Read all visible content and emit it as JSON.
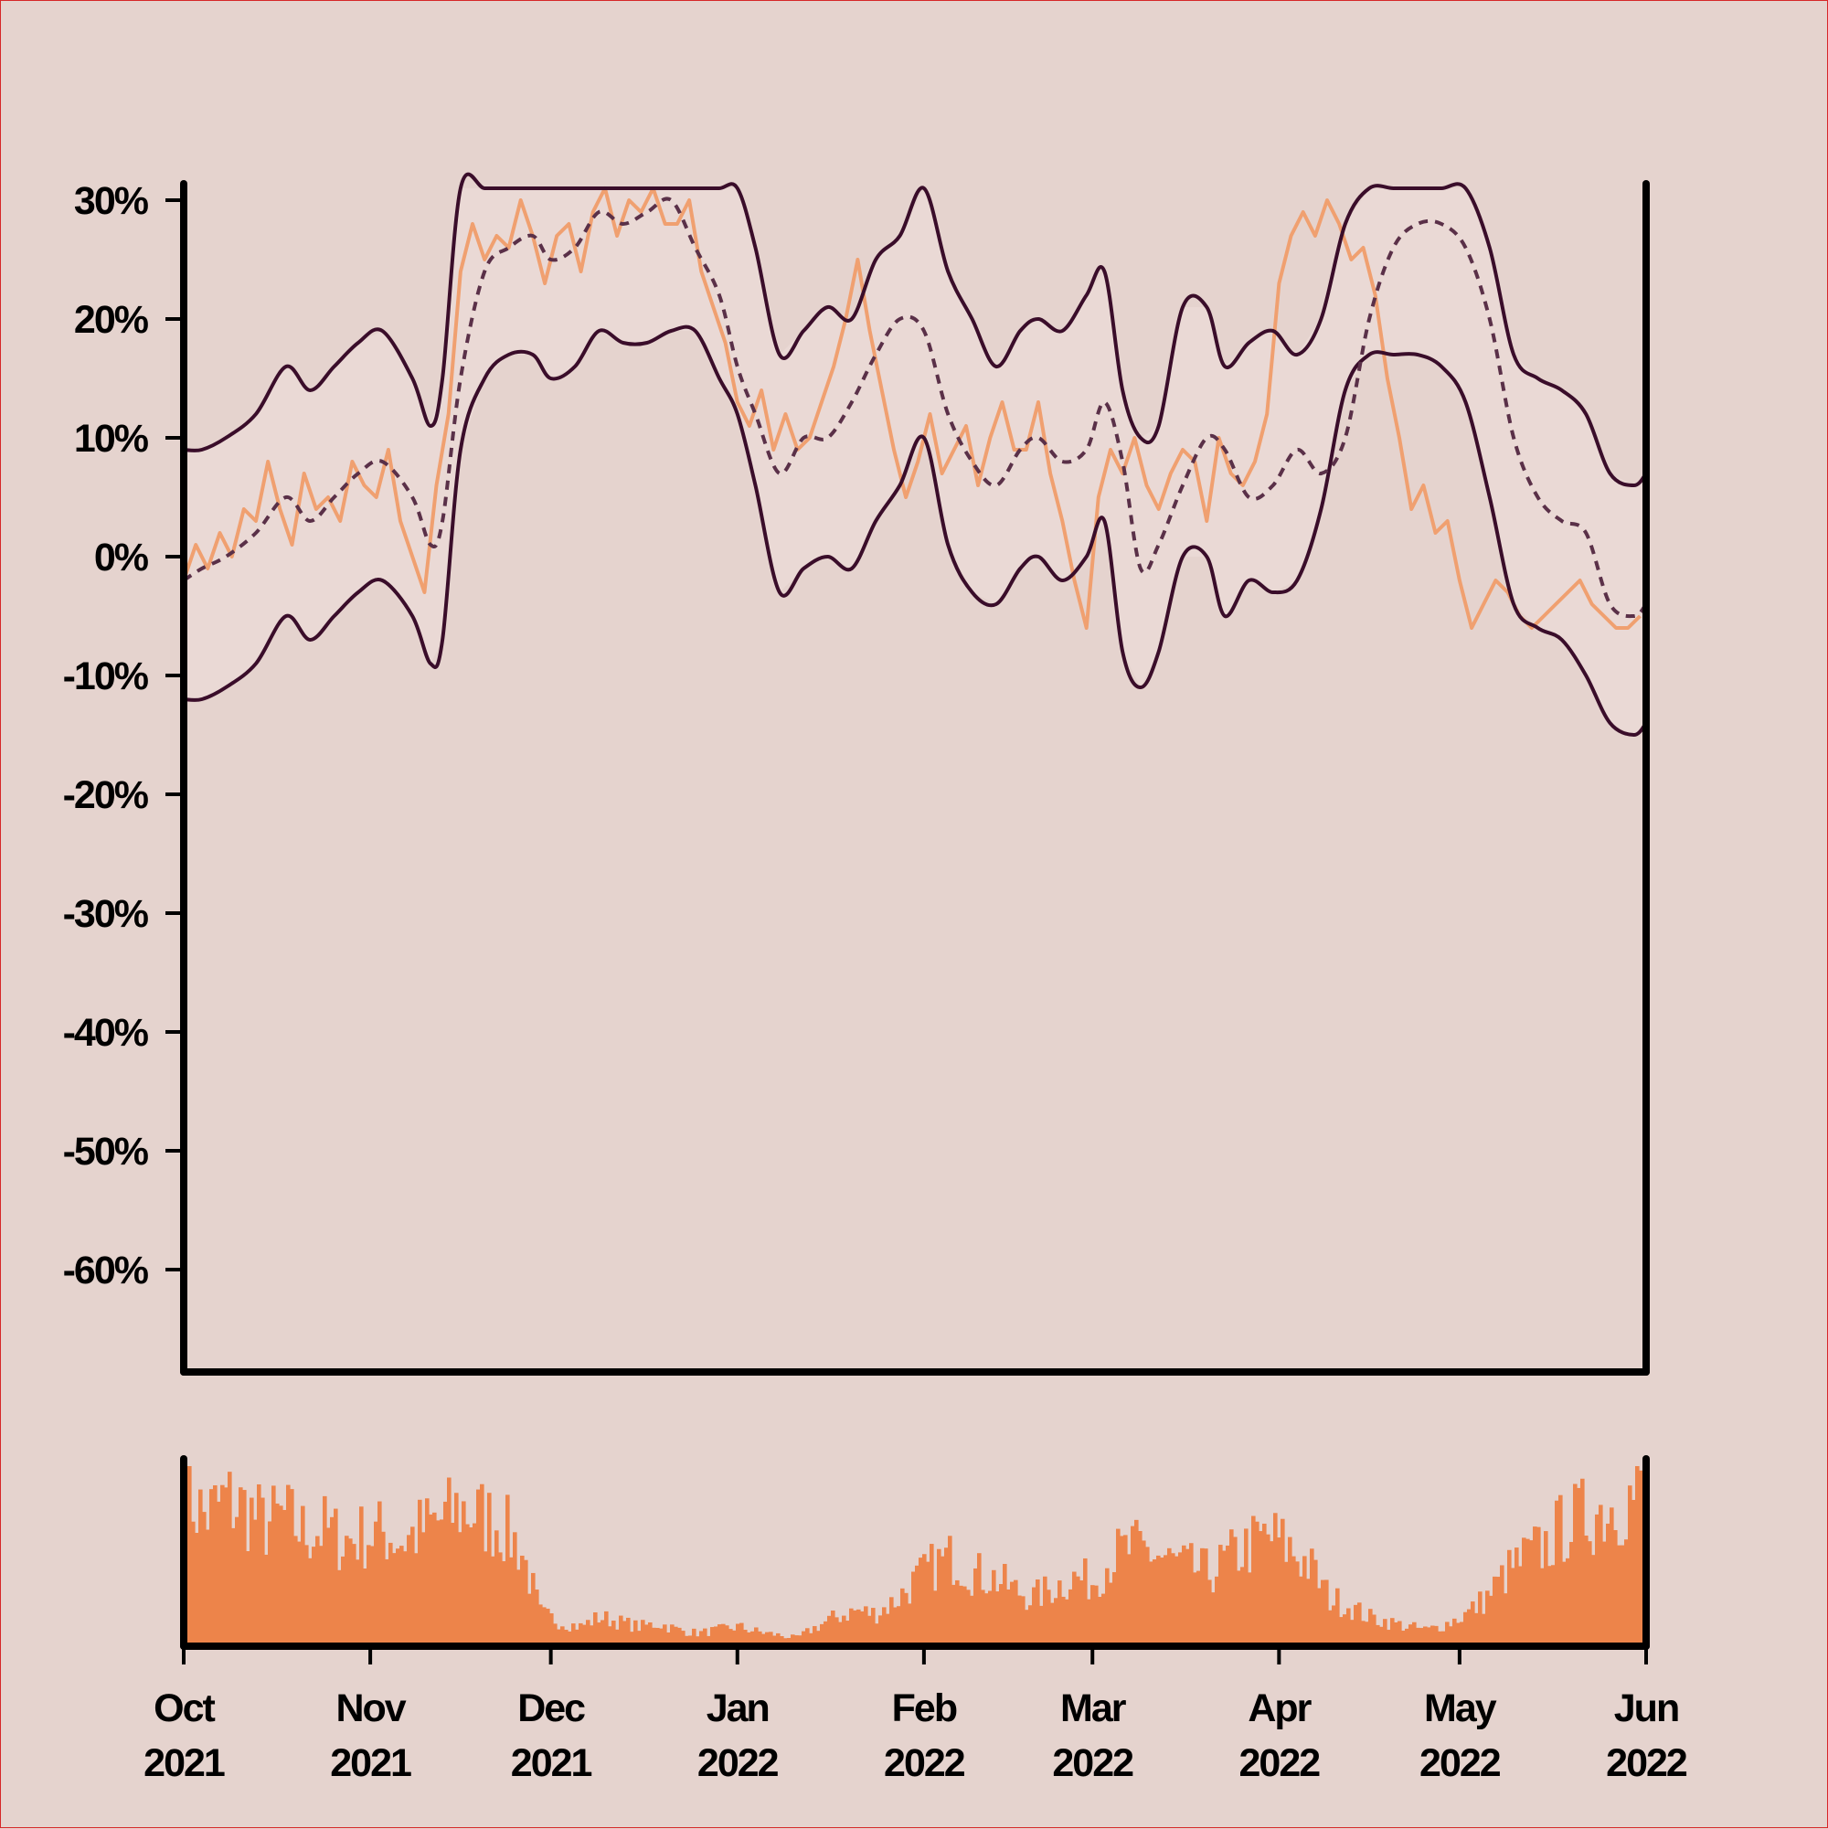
{
  "colors": {
    "background": "#e5d3ce",
    "band_fill": "#ead9d5",
    "raw_line": "#f0a070",
    "bounds_line": "#3a0d2a",
    "center_line": "#5a3048",
    "volume_bar": "#ed844a",
    "axis": "#000000"
  },
  "chart_data": [
    {
      "type": "line",
      "title": "",
      "xlabel": "",
      "ylabel": "",
      "ylim": [
        -67,
        31
      ],
      "xlim": [
        "2021-10-01",
        "2022-06-01"
      ],
      "y_ticks": [
        {
          "value": 30,
          "label": "30%"
        },
        {
          "value": 20,
          "label": "20%"
        },
        {
          "value": 10,
          "label": "10%"
        },
        {
          "value": 0,
          "label": "0%"
        },
        {
          "value": -10,
          "label": "-10%"
        },
        {
          "value": -20,
          "label": "-20%"
        },
        {
          "value": -30,
          "label": "-30%"
        },
        {
          "value": -40,
          "label": "-40%"
        },
        {
          "value": -50,
          "label": "-50%"
        },
        {
          "value": -60,
          "label": "-60%"
        }
      ],
      "x_ticks": [
        {
          "day": 0,
          "month": "Oct",
          "year": "2021"
        },
        {
          "day": 31,
          "month": "Nov",
          "year": "2021"
        },
        {
          "day": 61,
          "month": "Dec",
          "year": "2021"
        },
        {
          "day": 92,
          "month": "Jan",
          "year": "2022"
        },
        {
          "day": 123,
          "month": "Feb",
          "year": "2022"
        },
        {
          "day": 151,
          "month": "Mar",
          "year": "2022"
        },
        {
          "day": 182,
          "month": "Apr",
          "year": "2022"
        },
        {
          "day": 212,
          "month": "May",
          "year": "2022"
        },
        {
          "day": 243,
          "month": "Jun",
          "year": "2022"
        }
      ],
      "series": [
        {
          "name": "center",
          "style": "dashed",
          "x_days": [
            0,
            3,
            7,
            12,
            17,
            21,
            25,
            29,
            33,
            38,
            41,
            43,
            46,
            50,
            54,
            58,
            61,
            65,
            69,
            73,
            77,
            81,
            85,
            89,
            92,
            95,
            99,
            103,
            107,
            111,
            115,
            119,
            123,
            127,
            131,
            135,
            139,
            142,
            146,
            150,
            153,
            156,
            159,
            162,
            166,
            170,
            173,
            177,
            181,
            185,
            189,
            193,
            197,
            201,
            205,
            209,
            213,
            217,
            221,
            225,
            229,
            233,
            237,
            241,
            243
          ],
          "values": [
            -2,
            -1,
            0,
            2,
            5,
            3,
            5,
            7,
            8,
            5,
            1,
            3,
            15,
            24,
            26,
            27,
            25,
            26,
            29,
            28,
            29,
            30,
            26,
            22,
            16,
            12,
            7,
            10,
            10,
            13,
            17,
            20,
            19,
            12,
            8,
            6,
            9,
            10,
            8,
            9,
            13,
            8,
            -1,
            1,
            6,
            10,
            9,
            5,
            6,
            9,
            7,
            10,
            20,
            26,
            28,
            28,
            26,
            20,
            10,
            5,
            3,
            2,
            -4,
            -5,
            -4
          ]
        },
        {
          "name": "upper",
          "style": "solid",
          "x_days": [
            0,
            3,
            7,
            12,
            17,
            21,
            25,
            29,
            33,
            38,
            41,
            43,
            46,
            50,
            54,
            58,
            61,
            65,
            69,
            73,
            77,
            81,
            85,
            89,
            92,
            95,
            99,
            103,
            107,
            111,
            115,
            119,
            123,
            127,
            131,
            135,
            139,
            142,
            146,
            150,
            153,
            156,
            159,
            162,
            166,
            170,
            173,
            177,
            181,
            185,
            189,
            193,
            197,
            201,
            205,
            209,
            213,
            217,
            221,
            225,
            229,
            233,
            237,
            241,
            243
          ],
          "values": [
            9,
            9,
            10,
            12,
            16,
            14,
            16,
            18,
            19,
            15,
            11,
            15,
            31.5,
            31.5,
            31.5,
            31.5,
            31.5,
            31.5,
            31.5,
            31.5,
            31.5,
            31.5,
            31.5,
            31.5,
            31.5,
            26,
            17,
            19,
            21,
            20,
            25,
            27,
            31,
            24,
            20,
            16,
            19,
            20,
            19,
            22,
            24,
            14,
            10,
            11,
            21,
            21,
            16,
            18,
            19,
            17,
            20,
            28,
            31.5,
            31.5,
            31.5,
            31.5,
            31.5,
            26,
            17,
            15,
            14,
            12,
            7,
            6,
            7
          ]
        },
        {
          "name": "lower",
          "style": "solid",
          "x_days": [
            0,
            3,
            7,
            12,
            17,
            21,
            25,
            29,
            33,
            38,
            41,
            43,
            46,
            50,
            54,
            58,
            61,
            65,
            69,
            73,
            77,
            81,
            85,
            89,
            92,
            95,
            99,
            103,
            107,
            111,
            115,
            119,
            123,
            127,
            131,
            135,
            139,
            142,
            146,
            150,
            153,
            156,
            159,
            162,
            166,
            170,
            173,
            177,
            181,
            185,
            189,
            193,
            197,
            201,
            205,
            209,
            213,
            217,
            221,
            225,
            229,
            233,
            237,
            241,
            243
          ],
          "values": [
            -12,
            -12,
            -11,
            -9,
            -5,
            -7,
            -5,
            -3,
            -2,
            -5,
            -9,
            -7,
            9,
            15,
            17,
            17,
            15,
            16,
            19,
            18,
            18,
            19,
            19,
            15,
            12,
            6,
            -3,
            -1,
            0,
            -1,
            3,
            6,
            10,
            1,
            -3,
            -4,
            -1,
            0,
            -2,
            0,
            3,
            -8,
            -11,
            -8,
            0,
            0,
            -5,
            -2,
            -3,
            -2,
            4,
            14,
            17,
            17,
            17,
            16,
            13,
            5,
            -4,
            -6,
            -7,
            -10,
            -14,
            -15,
            -14
          ]
        },
        {
          "name": "raw",
          "style": "solid",
          "x_days": [
            0,
            2,
            4,
            6,
            8,
            10,
            12,
            14,
            16,
            18,
            20,
            22,
            24,
            26,
            28,
            30,
            32,
            34,
            36,
            38,
            40,
            42,
            44,
            46,
            48,
            50,
            52,
            54,
            56,
            58,
            60,
            62,
            64,
            66,
            68,
            70,
            72,
            74,
            76,
            78,
            80,
            82,
            84,
            86,
            88,
            90,
            92,
            94,
            96,
            98,
            100,
            102,
            104,
            106,
            108,
            110,
            112,
            114,
            116,
            118,
            120,
            122,
            124,
            126,
            128,
            130,
            132,
            134,
            136,
            138,
            140,
            142,
            144,
            146,
            148,
            150,
            152,
            154,
            156,
            158,
            160,
            162,
            164,
            166,
            168,
            170,
            172,
            174,
            176,
            178,
            180,
            182,
            184,
            186,
            188,
            190,
            192,
            194,
            196,
            198,
            200,
            202,
            204,
            206,
            208,
            210,
            212,
            214,
            216,
            218,
            220,
            222,
            224,
            226,
            228,
            230,
            232,
            234,
            236,
            238,
            240,
            242
          ],
          "values": [
            -2,
            1,
            -1,
            2,
            0,
            4,
            3,
            8,
            4,
            1,
            7,
            4,
            5,
            3,
            8,
            6,
            5,
            9,
            3,
            0,
            -3,
            6,
            12,
            24,
            28,
            25,
            27,
            26,
            30,
            27,
            23,
            27,
            28,
            24,
            29,
            31,
            27,
            30,
            29,
            31,
            28,
            28,
            30,
            24,
            21,
            18,
            13,
            11,
            14,
            9,
            12,
            9,
            10,
            13,
            16,
            20,
            25,
            19,
            14,
            9,
            5,
            8,
            12,
            7,
            9,
            11,
            6,
            10,
            13,
            9,
            9,
            13,
            7,
            3,
            -2,
            -6,
            5,
            9,
            7,
            10,
            6,
            4,
            7,
            9,
            8,
            3,
            10,
            7,
            6,
            8,
            12,
            23,
            27,
            29,
            27,
            30,
            28,
            25,
            26,
            22,
            15,
            10,
            4,
            6,
            2,
            3,
            -2,
            -6,
            -4,
            -2,
            -3,
            -5,
            -6,
            -5,
            -4,
            -3,
            -2,
            -4,
            -5,
            -6,
            -6,
            -5
          ]
        }
      ]
    },
    {
      "type": "bar",
      "title": "",
      "series_name": "volume",
      "x_days_start": 0,
      "x_days_end": 243,
      "relative_values": [
        0.95,
        0.8,
        0.9,
        0.85,
        0.75,
        0.8,
        0.7,
        0.72,
        0.65,
        0.68,
        0.7,
        0.65,
        0.72,
        0.78,
        0.85,
        0.8,
        0.75,
        0.6,
        0.2,
        0.15,
        0.12,
        0.18,
        0.15,
        0.12,
        0.14,
        0.1,
        0.08,
        0.1,
        0.12,
        0.09,
        0.07,
        0.05,
        0.12,
        0.18,
        0.22,
        0.2,
        0.28,
        0.4,
        0.5,
        0.55,
        0.45,
        0.42,
        0.35,
        0.3,
        0.36,
        0.42,
        0.4,
        0.55,
        0.6,
        0.58,
        0.52,
        0.48,
        0.45,
        0.55,
        0.62,
        0.68,
        0.6,
        0.5,
        0.3,
        0.25,
        0.18,
        0.15,
        0.12,
        0.1,
        0.14,
        0.2,
        0.3,
        0.45,
        0.55,
        0.62,
        0.75,
        0.8,
        0.85,
        0.9,
        0.95
      ]
    }
  ]
}
